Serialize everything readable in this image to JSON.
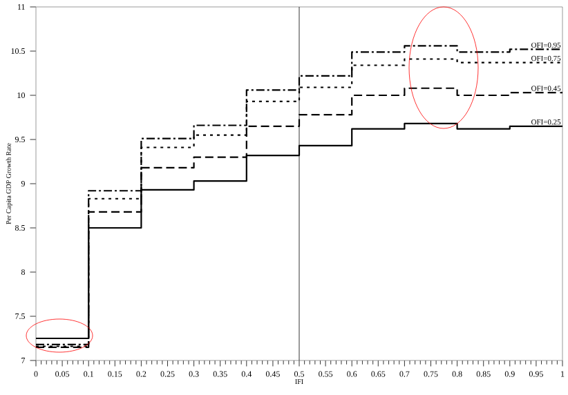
{
  "chart_data": {
    "type": "step",
    "xlabel": "IFI",
    "ylabel": "Per Capita GDP Growth Rate",
    "x": [
      0,
      0.1,
      0.2,
      0.3,
      0.4,
      0.5,
      0.6,
      0.7,
      0.8,
      0.9,
      1
    ],
    "series": [
      {
        "name": "OFI=0.95",
        "color": "#000000",
        "line_style": "dashdot",
        "values": [
          7.18,
          8.92,
          9.51,
          9.66,
          10.06,
          10.22,
          10.49,
          10.56,
          10.49,
          10.52,
          10.52
        ]
      },
      {
        "name": "OFI=0.75",
        "color": "#000000",
        "line_style": "dotted",
        "values": [
          7.16,
          8.83,
          9.41,
          9.55,
          9.93,
          10.09,
          10.34,
          10.41,
          10.37,
          10.37,
          10.37
        ]
      },
      {
        "name": "OFI=0.45",
        "color": "#000000",
        "line_style": "dashed",
        "values": [
          7.15,
          8.68,
          9.18,
          9.3,
          9.65,
          9.78,
          10.0,
          10.08,
          10.0,
          10.03,
          10.03
        ]
      },
      {
        "name": "OFI=0.25",
        "color": "#000000",
        "line_style": "solid",
        "values": [
          7.25,
          8.5,
          8.93,
          9.03,
          9.32,
          9.43,
          9.62,
          9.68,
          9.62,
          9.65,
          9.65
        ]
      }
    ],
    "xlim": [
      0,
      1
    ],
    "ylim": [
      7,
      11
    ],
    "xticks": [
      0,
      0.05,
      0.1,
      0.15,
      0.2,
      0.25,
      0.3,
      0.35,
      0.4,
      0.45,
      0.5,
      0.55,
      0.6,
      0.65,
      0.7,
      0.75,
      0.8,
      0.85,
      0.9,
      0.95,
      1
    ],
    "yticks": [
      7,
      7.5,
      8,
      8.5,
      9,
      9.5,
      10,
      10.5,
      11
    ],
    "ref_lines": [
      {
        "axis": "x",
        "value": 0.5,
        "color": "#000000"
      }
    ],
    "grid": false,
    "legend": false,
    "marker": "none"
  }
}
